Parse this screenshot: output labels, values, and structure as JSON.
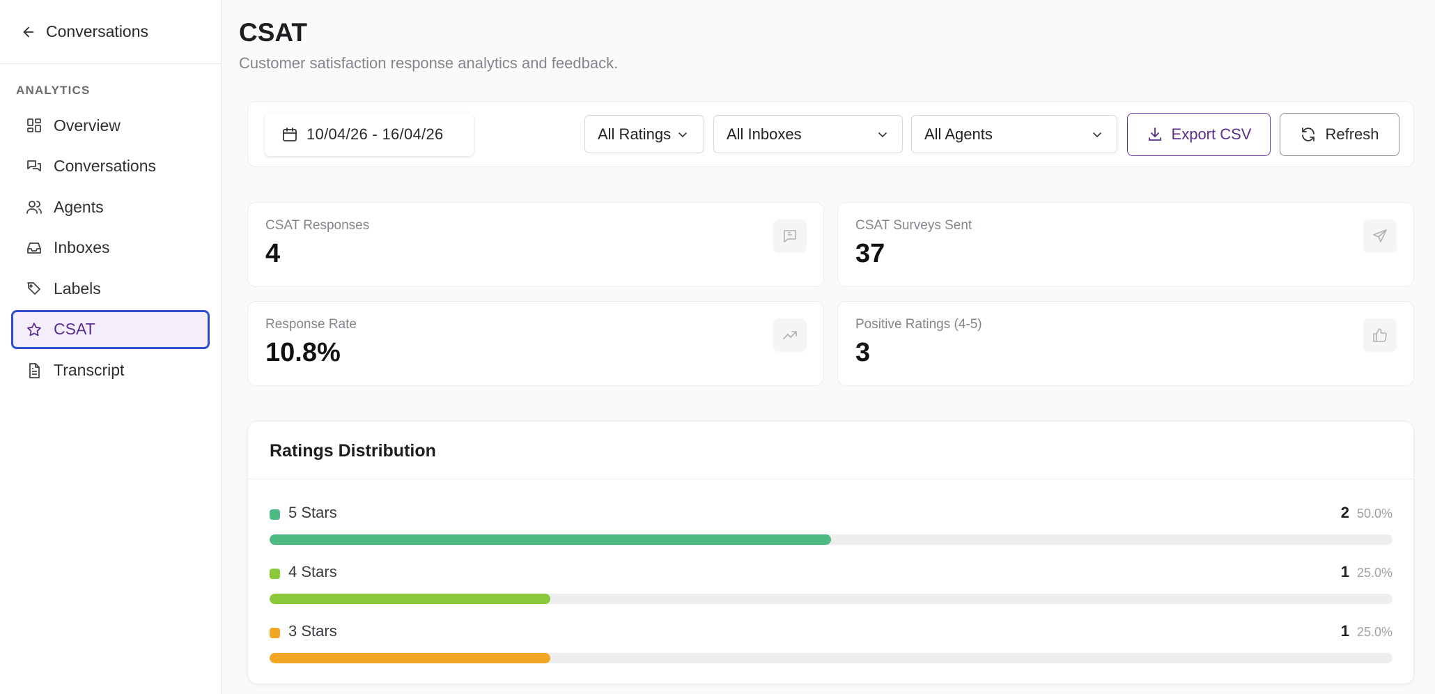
{
  "sidebar": {
    "back_label": "Conversations",
    "section_title": "ANALYTICS",
    "items": [
      {
        "label": "Overview",
        "icon": "grid-icon"
      },
      {
        "label": "Conversations",
        "icon": "chat-icon"
      },
      {
        "label": "Agents",
        "icon": "users-icon"
      },
      {
        "label": "Inboxes",
        "icon": "inbox-icon"
      },
      {
        "label": "Labels",
        "icon": "tag-icon"
      },
      {
        "label": "CSAT",
        "icon": "star-icon",
        "active": true
      },
      {
        "label": "Transcript",
        "icon": "file-text-icon"
      }
    ]
  },
  "header": {
    "title": "CSAT",
    "subtitle": "Customer satisfaction response analytics and feedback."
  },
  "filters": {
    "date_range": "10/04/26 - 16/04/26",
    "ratings": "All Ratings",
    "inboxes": "All Inboxes",
    "agents": "All Agents",
    "export_label": "Export CSV",
    "refresh_label": "Refresh"
  },
  "stats": {
    "responses": {
      "label": "CSAT Responses",
      "value": "4",
      "icon": "message-icon"
    },
    "surveys_sent": {
      "label": "CSAT Surveys Sent",
      "value": "37",
      "icon": "send-icon"
    },
    "response_rate": {
      "label": "Response Rate",
      "value": "10.8%",
      "icon": "trending-up-icon"
    },
    "positive": {
      "label": "Positive Ratings (4-5)",
      "value": "3",
      "icon": "thumbs-up-icon"
    }
  },
  "distribution": {
    "title": "Ratings Distribution",
    "rows": [
      {
        "label": "5 Stars",
        "count": "2",
        "percent": "50.0%",
        "fraction": 0.5,
        "color": "#4dba83"
      },
      {
        "label": "4 Stars",
        "count": "1",
        "percent": "25.0%",
        "fraction": 0.25,
        "color": "#8cc93a"
      },
      {
        "label": "3 Stars",
        "count": "1",
        "percent": "25.0%",
        "fraction": 0.25,
        "color": "#f2a724"
      }
    ]
  },
  "colors": {
    "accent": "#5a2d8e",
    "active_border": "#2f4fd1",
    "active_bg": "#f4eefb"
  }
}
